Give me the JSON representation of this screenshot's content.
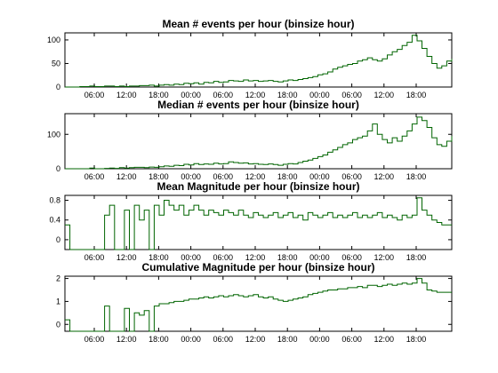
{
  "figure": {
    "line_color": "#006400",
    "background": "#ffffff"
  },
  "chart_data": [
    {
      "type": "line",
      "title": "Mean # events per hour (binsize  hour)",
      "xlabel": "",
      "ylabel": "",
      "ylim": [
        0,
        115
      ],
      "yticks": [
        "0",
        "50",
        "100"
      ],
      "ytick_values": [
        0,
        50,
        100
      ],
      "x_tick_labels": [
        "06:00",
        "12:00",
        "18:00",
        "00:00",
        "06:00",
        "12:00",
        "18:00",
        "00:00",
        "06:00",
        "12:00",
        "18:00"
      ],
      "grid": false,
      "series": [
        {
          "x": [
            0,
            1,
            2,
            3,
            4,
            5,
            6,
            7,
            8,
            9,
            10,
            11,
            12,
            13,
            14,
            15,
            16,
            17,
            18,
            19,
            20,
            21,
            22,
            23,
            24,
            25,
            26,
            27,
            28,
            29,
            30,
            31,
            32,
            33,
            34,
            35,
            36,
            37,
            38,
            39,
            40,
            41,
            42,
            43,
            44,
            45,
            46,
            47,
            48,
            49,
            50,
            51,
            52,
            53,
            54,
            55,
            56,
            57,
            58,
            59,
            60,
            61,
            62,
            63,
            64,
            65,
            66,
            67,
            68,
            69,
            70,
            71,
            72,
            73,
            74,
            75,
            76,
            77,
            78
          ],
          "values": [
            0,
            0,
            0,
            1,
            1,
            2,
            1,
            1,
            2,
            2,
            1,
            2,
            1,
            2,
            2,
            3,
            3,
            4,
            2,
            4,
            5,
            4,
            6,
            5,
            8,
            7,
            9,
            6,
            10,
            9,
            12,
            10,
            11,
            14,
            13,
            12,
            15,
            13,
            14,
            12,
            13,
            14,
            12,
            11,
            13,
            15,
            14,
            16,
            18,
            20,
            22,
            26,
            28,
            32,
            38,
            42,
            45,
            48,
            50,
            55,
            58,
            62,
            58,
            55,
            60,
            68,
            75,
            80,
            88,
            95,
            110,
            98,
            82,
            65,
            50,
            40,
            45,
            55,
            60
          ]
        }
      ]
    },
    {
      "type": "line",
      "title": "Median # events per hour (binsize  hour)",
      "xlabel": "",
      "ylabel": "",
      "ylim": [
        0,
        160
      ],
      "yticks": [
        "0",
        "100"
      ],
      "ytick_values": [
        0,
        100
      ],
      "x_tick_labels": [
        "06:00",
        "12:00",
        "18:00",
        "00:00",
        "06:00",
        "12:00",
        "18:00",
        "00:00",
        "06:00",
        "12:00",
        "18:00"
      ],
      "grid": false,
      "series": [
        {
          "x": [
            0,
            1,
            2,
            3,
            4,
            5,
            6,
            7,
            8,
            9,
            10,
            11,
            12,
            13,
            14,
            15,
            16,
            17,
            18,
            19,
            20,
            21,
            22,
            23,
            24,
            25,
            26,
            27,
            28,
            29,
            30,
            31,
            32,
            33,
            34,
            35,
            36,
            37,
            38,
            39,
            40,
            41,
            42,
            43,
            44,
            45,
            46,
            47,
            48,
            49,
            50,
            51,
            52,
            53,
            54,
            55,
            56,
            57,
            58,
            59,
            60,
            61,
            62,
            63,
            64,
            65,
            66,
            67,
            68,
            69,
            70,
            71,
            72,
            73,
            74,
            75,
            76,
            77,
            78
          ],
          "values": [
            0,
            0,
            0,
            0,
            0,
            2,
            0,
            0,
            1,
            2,
            1,
            3,
            2,
            3,
            4,
            4,
            3,
            5,
            4,
            6,
            8,
            7,
            10,
            9,
            13,
            11,
            15,
            12,
            14,
            13,
            16,
            14,
            15,
            20,
            18,
            16,
            17,
            14,
            15,
            13,
            12,
            14,
            12,
            10,
            13,
            15,
            14,
            18,
            22,
            25,
            30,
            35,
            40,
            48,
            55,
            62,
            70,
            75,
            85,
            90,
            95,
            110,
            130,
            100,
            85,
            75,
            90,
            80,
            95,
            110,
            130,
            150,
            140,
            120,
            90,
            70,
            65,
            80,
            95
          ]
        }
      ]
    },
    {
      "type": "line",
      "title": "Mean Magnitude per hour (binsize  hour)",
      "xlabel": "",
      "ylabel": "",
      "ylim": [
        -0.2,
        0.9
      ],
      "yticks": [
        "0",
        "0.4",
        "0.8"
      ],
      "ytick_values": [
        0,
        0.4,
        0.8
      ],
      "x_tick_labels": [
        "06:00",
        "12:00",
        "18:00",
        "00:00",
        "06:00",
        "12:00",
        "18:00",
        "00:00",
        "06:00",
        "12:00",
        "18:00"
      ],
      "grid": false,
      "series": [
        {
          "x": [
            0,
            1,
            2,
            3,
            4,
            5,
            6,
            7,
            8,
            9,
            10,
            11,
            12,
            13,
            14,
            15,
            16,
            17,
            18,
            19,
            20,
            21,
            22,
            23,
            24,
            25,
            26,
            27,
            28,
            29,
            30,
            31,
            32,
            33,
            34,
            35,
            36,
            37,
            38,
            39,
            40,
            41,
            42,
            43,
            44,
            45,
            46,
            47,
            48,
            49,
            50,
            51,
            52,
            53,
            54,
            55,
            56,
            57,
            58,
            59,
            60,
            61,
            62,
            63,
            64,
            65,
            66,
            67,
            68,
            69,
            70,
            71,
            72,
            73,
            74,
            75,
            76,
            77,
            78
          ],
          "values": [
            0.3,
            -0.2,
            -0.2,
            -0.2,
            -0.2,
            -0.2,
            -0.2,
            -0.2,
            0.5,
            0.7,
            -0.2,
            -0.2,
            0.6,
            -0.2,
            0.7,
            0.4,
            0.6,
            -0.2,
            0.7,
            0.5,
            0.8,
            0.7,
            0.6,
            0.7,
            0.5,
            0.6,
            0.7,
            0.6,
            0.5,
            0.6,
            0.55,
            0.5,
            0.6,
            0.55,
            0.5,
            0.6,
            0.5,
            0.45,
            0.55,
            0.5,
            0.45,
            0.5,
            0.55,
            0.45,
            0.5,
            0.55,
            0.45,
            0.5,
            0.4,
            0.55,
            0.5,
            0.45,
            0.5,
            0.55,
            0.45,
            0.5,
            0.45,
            0.5,
            0.55,
            0.45,
            0.5,
            0.45,
            0.5,
            0.55,
            0.45,
            0.5,
            0.45,
            0.4,
            0.5,
            0.45,
            0.5,
            0.85,
            0.6,
            0.5,
            0.4,
            0.35,
            0.3,
            0.3,
            0.3
          ]
        }
      ]
    },
    {
      "type": "line",
      "title": "Cumulative Magnitude per hour (binsize  hour)",
      "xlabel": "",
      "ylabel": "",
      "ylim": [
        -0.3,
        2.1
      ],
      "yticks": [
        "0",
        "1",
        "2"
      ],
      "ytick_values": [
        0,
        1,
        2
      ],
      "x_tick_labels": [
        "06:00",
        "12:00",
        "18:00",
        "00:00",
        "06:00",
        "12:00",
        "18:00",
        "00:00",
        "06:00",
        "12:00",
        "18:00"
      ],
      "grid": false,
      "series": [
        {
          "x": [
            0,
            1,
            2,
            3,
            4,
            5,
            6,
            7,
            8,
            9,
            10,
            11,
            12,
            13,
            14,
            15,
            16,
            17,
            18,
            19,
            20,
            21,
            22,
            23,
            24,
            25,
            26,
            27,
            28,
            29,
            30,
            31,
            32,
            33,
            34,
            35,
            36,
            37,
            38,
            39,
            40,
            41,
            42,
            43,
            44,
            45,
            46,
            47,
            48,
            49,
            50,
            51,
            52,
            53,
            54,
            55,
            56,
            57,
            58,
            59,
            60,
            61,
            62,
            63,
            64,
            65,
            66,
            67,
            68,
            69,
            70,
            71,
            72,
            73,
            74,
            75,
            76,
            77,
            78
          ],
          "values": [
            0.2,
            -0.3,
            -0.3,
            -0.3,
            -0.3,
            -0.3,
            -0.3,
            -0.3,
            0.8,
            -0.3,
            -0.3,
            -0.3,
            0.7,
            -0.3,
            0.5,
            0.4,
            0.6,
            -0.3,
            0.8,
            0.9,
            0.9,
            0.95,
            1.0,
            1.0,
            1.05,
            1.1,
            1.1,
            1.15,
            1.2,
            1.15,
            1.2,
            1.25,
            1.2,
            1.25,
            1.3,
            1.25,
            1.2,
            1.25,
            1.3,
            1.2,
            1.15,
            1.2,
            1.1,
            1.05,
            1.0,
            1.05,
            1.1,
            1.15,
            1.2,
            1.3,
            1.35,
            1.4,
            1.45,
            1.5,
            1.5,
            1.55,
            1.55,
            1.6,
            1.6,
            1.65,
            1.6,
            1.7,
            1.7,
            1.65,
            1.7,
            1.75,
            1.7,
            1.75,
            1.8,
            1.75,
            1.8,
            2.0,
            1.8,
            1.5,
            1.45,
            1.4,
            1.4,
            1.4,
            1.4
          ]
        }
      ]
    }
  ]
}
